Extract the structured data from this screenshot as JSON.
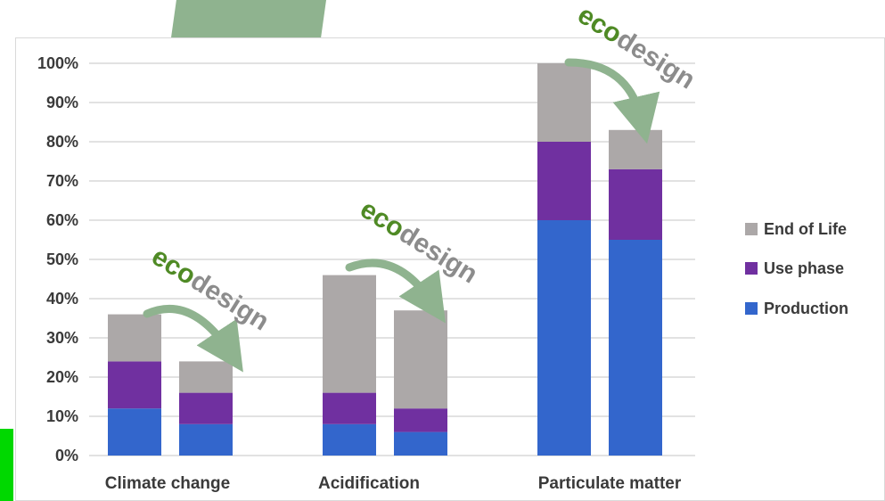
{
  "chart_data": {
    "type": "bar",
    "stacked": true,
    "categories": [
      "Climate change",
      "Acidification",
      "Particulate matter"
    ],
    "bars_per_category": 2,
    "series": [
      {
        "name": "Production",
        "color": "#3366cc",
        "values": [
          [
            12,
            8
          ],
          [
            8,
            6
          ],
          [
            60,
            55
          ]
        ]
      },
      {
        "name": "Use phase",
        "color": "#7030a0",
        "values": [
          [
            12,
            8
          ],
          [
            8,
            6
          ],
          [
            20,
            18
          ]
        ]
      },
      {
        "name": "End of Life",
        "color": "#aca8a8",
        "values": [
          [
            12,
            8
          ],
          [
            30,
            25
          ],
          [
            20,
            10
          ]
        ]
      }
    ],
    "ylim": [
      0,
      100
    ],
    "yticks": [
      "0%",
      "10%",
      "20%",
      "30%",
      "40%",
      "50%",
      "60%",
      "70%",
      "80%",
      "90%",
      "100%"
    ],
    "grid": true,
    "legend_position": "right",
    "legend_order": [
      "End of Life",
      "Use phase",
      "Production"
    ],
    "annotations": [
      {
        "text_eco": "eco",
        "text_design": "design",
        "category": "Climate change"
      },
      {
        "text_eco": "eco",
        "text_design": "design",
        "category": "Acidification"
      },
      {
        "text_eco": "eco",
        "text_design": "design",
        "category": "Particulate matter"
      }
    ],
    "colors": {
      "eco_text": "#4f8a25",
      "design_text": "#8c8c8c",
      "arrow": "#8fb38f",
      "grid": "#d9d9d9"
    }
  }
}
